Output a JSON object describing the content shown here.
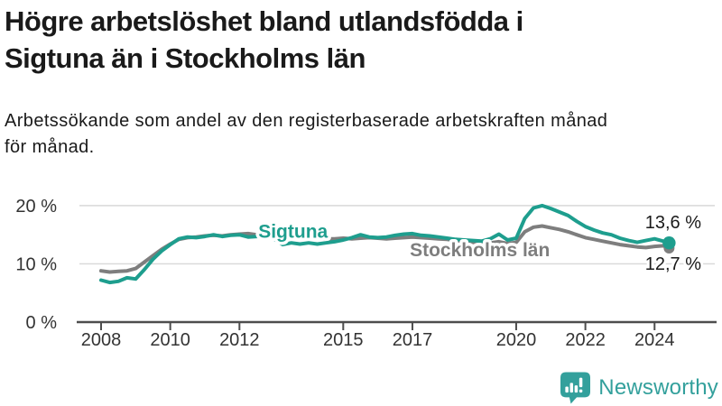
{
  "header": {
    "title_lines": [
      "Högre arbetslöshet bland utlandsfödda i",
      "Sigtuna än i Stockholms län"
    ],
    "subtitle_lines": [
      "Arbetssökande som andel av den registerbaserade arbetskraften månad",
      "för månad."
    ]
  },
  "chart_data": {
    "type": "line",
    "title": "",
    "xlabel": "",
    "ylabel": "",
    "unit": "%",
    "grid": "horizontal",
    "legend_position": "inline-labels",
    "ylim": [
      0,
      21.5
    ],
    "xlim": [
      2007.3,
      2025.4
    ],
    "y_ticks": [
      {
        "value": 0,
        "label": "0 %"
      },
      {
        "value": 10,
        "label": "10 %"
      },
      {
        "value": 20,
        "label": "20 %"
      }
    ],
    "x_ticks": [
      {
        "value": 2008,
        "label": "2008"
      },
      {
        "value": 2010,
        "label": "2010"
      },
      {
        "value": 2012,
        "label": "2012"
      },
      {
        "value": 2015,
        "label": "2015"
      },
      {
        "value": 2017,
        "label": "2017"
      },
      {
        "value": 2020,
        "label": "2020"
      },
      {
        "value": 2022,
        "label": "2022"
      },
      {
        "value": 2024,
        "label": "2024"
      }
    ],
    "x": [
      2008,
      2008.25,
      2008.5,
      2008.75,
      2009,
      2009.25,
      2009.5,
      2009.75,
      2010,
      2010.25,
      2010.5,
      2010.75,
      2011,
      2011.25,
      2011.5,
      2011.75,
      2012,
      2012.25,
      2012.5,
      2012.75,
      2013,
      2013.25,
      2013.5,
      2013.75,
      2014,
      2014.25,
      2014.5,
      2014.75,
      2015,
      2015.25,
      2015.5,
      2015.75,
      2016,
      2016.25,
      2016.5,
      2016.75,
      2017,
      2017.25,
      2017.5,
      2017.75,
      2018,
      2018.25,
      2018.5,
      2018.75,
      2019,
      2019.25,
      2019.5,
      2019.75,
      2020,
      2020.25,
      2020.5,
      2020.75,
      2021,
      2021.25,
      2021.5,
      2021.75,
      2022,
      2022.25,
      2022.5,
      2022.75,
      2023,
      2023.25,
      2023.5,
      2023.75,
      2024,
      2024.25,
      2024.42
    ],
    "series": [
      {
        "name": "Stockholms län",
        "color": "#7e7e7e",
        "end_label": "12,7 %",
        "end_value": 12.7,
        "label_x": 2018.95,
        "label_y": 12.4,
        "values": [
          8.8,
          8.6,
          8.7,
          8.8,
          9.2,
          10.3,
          11.4,
          12.5,
          13.4,
          14.2,
          14.5,
          14.6,
          14.8,
          14.9,
          14.8,
          15.0,
          15.1,
          15.2,
          15.0,
          15.1,
          14.9,
          14.7,
          14.6,
          14.5,
          14.5,
          14.4,
          14.3,
          14.3,
          14.4,
          14.3,
          14.4,
          14.5,
          14.4,
          14.3,
          14.4,
          14.5,
          14.6,
          14.5,
          14.4,
          14.3,
          14.2,
          14.0,
          13.9,
          13.7,
          13.5,
          13.6,
          13.8,
          13.5,
          13.7,
          15.5,
          16.3,
          16.5,
          16.2,
          15.9,
          15.5,
          15.0,
          14.5,
          14.2,
          13.9,
          13.6,
          13.3,
          13.1,
          12.9,
          12.8,
          13.0,
          13.1,
          12.7
        ]
      },
      {
        "name": "Sigtuna",
        "color": "#1e9e8e",
        "end_label": "13,6 %",
        "end_value": 13.6,
        "label_x": 2013.55,
        "label_y": 15.6,
        "values": [
          7.2,
          6.8,
          7.0,
          7.6,
          7.4,
          9.0,
          10.8,
          12.2,
          13.3,
          14.3,
          14.6,
          14.5,
          14.7,
          15.0,
          14.7,
          14.9,
          15.0,
          14.6,
          14.7,
          14.8,
          14.3,
          13.3,
          13.6,
          13.4,
          13.6,
          13.4,
          13.6,
          13.8,
          14.1,
          14.5,
          15.0,
          14.6,
          14.5,
          14.6,
          14.9,
          15.1,
          15.2,
          14.9,
          14.8,
          14.6,
          14.4,
          14.2,
          14.1,
          14.0,
          13.9,
          14.3,
          15.1,
          14.1,
          14.4,
          17.8,
          19.6,
          20.0,
          19.5,
          18.9,
          18.3,
          17.3,
          16.4,
          15.8,
          15.3,
          15.0,
          14.4,
          14.0,
          13.7,
          14.0,
          14.3,
          13.9,
          13.6
        ]
      }
    ],
    "colors": {
      "accent_teal": "#1e9e8e",
      "gray_line": "#7e7e7e",
      "grid": "#d8d8d8",
      "axis": "#4d4d4d",
      "tick_label": "#333333",
      "end_label_text": "#1a1a1a"
    }
  },
  "footer": {
    "brand": "Newsworthy",
    "logo_icon": "bar-chart-exclamation-bubble",
    "brand_color": "#33a09c"
  }
}
